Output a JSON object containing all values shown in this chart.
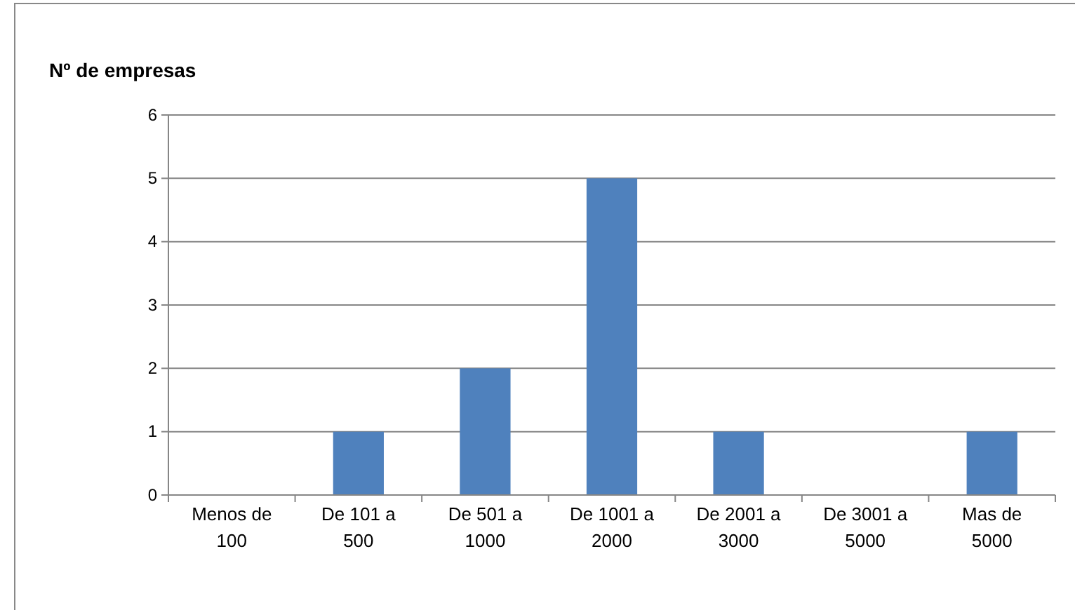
{
  "chart_data": {
    "type": "bar",
    "title": "Nº de empresas",
    "categories": [
      "Menos de 100",
      "De 101 a 500",
      "De 501 a 1000",
      "De 1001 a 2000",
      "De 2001 a 3000",
      "De 3001 a 5000",
      "Mas de 5000"
    ],
    "values": [
      0,
      1,
      2,
      5,
      1,
      0,
      1
    ],
    "color": "#4f81bd",
    "ylim": [
      0,
      6
    ],
    "yticks": [
      0,
      1,
      2,
      3,
      4,
      5,
      6
    ],
    "grid": "y"
  }
}
